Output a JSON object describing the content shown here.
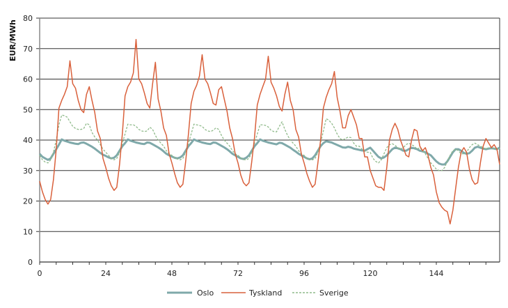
{
  "chart_data": {
    "type": "line",
    "title": "",
    "xlabel": "",
    "ylabel": "EUR/MWh",
    "xlim": [
      0,
      168
    ],
    "ylim": [
      0,
      80
    ],
    "xticks": [
      0,
      24,
      48,
      72,
      96,
      120,
      144
    ],
    "yticks": [
      0,
      10,
      20,
      30,
      40,
      50,
      60,
      70,
      80
    ],
    "grid": "horizontal",
    "legend_position": "bottom",
    "series": [
      {
        "name": "Oslo",
        "color": "#7fa9aa",
        "style": "solid-thick",
        "values": [
          35.5,
          34.5,
          34,
          33.5,
          34,
          35.5,
          37,
          38.5,
          40.2,
          39.8,
          39.5,
          39.2,
          39,
          38.8,
          38.7,
          39.1,
          39.2,
          38.8,
          38.3,
          37.8,
          37.2,
          36.5,
          35.8,
          35.2,
          34.8,
          34.3,
          34,
          34.2,
          35,
          36.5,
          38,
          39,
          40.2,
          39.8,
          39.5,
          39.2,
          39,
          38.8,
          38.7,
          39.2,
          39.1,
          38.6,
          38.1,
          37.6,
          37,
          36.3,
          35.5,
          35,
          34.6,
          34.2,
          34,
          34.3,
          35,
          36.5,
          38,
          39,
          40.2,
          39.8,
          39.5,
          39.2,
          39,
          38.8,
          38.7,
          39.2,
          39.1,
          38.6,
          38.1,
          37.6,
          37,
          36.3,
          35.5,
          35,
          34.5,
          34,
          33.8,
          34.2,
          35,
          36.5,
          38,
          39,
          40.2,
          39.8,
          39.5,
          39.2,
          39,
          38.8,
          38.6,
          39.1,
          39,
          38.5,
          38,
          37.5,
          36.8,
          36.2,
          35.5,
          35,
          34.5,
          34,
          33.7,
          34,
          35,
          36.5,
          38,
          39,
          39.6,
          39.4,
          39.2,
          38.8,
          38.4,
          38,
          37.6,
          37.5,
          37.8,
          37.6,
          37.2,
          37,
          36.8,
          36.6,
          36.5,
          37,
          37.5,
          36.5,
          35.5,
          34.5,
          34,
          34.3,
          35,
          36,
          37,
          37.5,
          37.3,
          37,
          36.5,
          36.5,
          37,
          37.5,
          37.3,
          37,
          36.5,
          36.3,
          36,
          35.5,
          35,
          34,
          33,
          32.3,
          32,
          32,
          33,
          34.5,
          36,
          37,
          37,
          36.5,
          35.8,
          35.5,
          35.7,
          36.5,
          37.5,
          37.8,
          37.5,
          37.2,
          37,
          37.2,
          37.3,
          37.2,
          37,
          37.5
        ]
      },
      {
        "name": "Tyskland",
        "color": "#d9603b",
        "style": "solid",
        "values": [
          26.5,
          23,
          20.5,
          19,
          20.5,
          27,
          37,
          50.5,
          53,
          55,
          57.5,
          66,
          58.5,
          57,
          53,
          50,
          49,
          55,
          57.5,
          53,
          49,
          43,
          40.5,
          34,
          31,
          27.5,
          25,
          23.5,
          24.5,
          32,
          42,
          54.5,
          57.5,
          59,
          62,
          73,
          60,
          58.5,
          55.5,
          52,
          50.5,
          58.5,
          65.5,
          53.5,
          49.5,
          44,
          41.5,
          35.5,
          32.5,
          29,
          26,
          24.5,
          25.5,
          33,
          42,
          52,
          56,
          58,
          61,
          68,
          60,
          58.5,
          55.5,
          52,
          51.5,
          56.5,
          57.5,
          53.5,
          49.5,
          44,
          40.5,
          35.5,
          32.5,
          28.5,
          26,
          25,
          26,
          33,
          41,
          51.5,
          55,
          57.5,
          60,
          67.5,
          59,
          57,
          54.5,
          51,
          49.5,
          55,
          59,
          53,
          50,
          43.5,
          41,
          35.5,
          32.5,
          29,
          26.5,
          24.5,
          25.5,
          32.5,
          40,
          50.5,
          54,
          56.5,
          58.5,
          62.5,
          54,
          49.5,
          44,
          44,
          48,
          50,
          47.5,
          45,
          40.5,
          40.5,
          34.5,
          34.5,
          30,
          27.5,
          25,
          24.5,
          24.5,
          23.5,
          31,
          40,
          43.5,
          45.5,
          43.5,
          40,
          37.5,
          35,
          34.5,
          40,
          43.5,
          43,
          38,
          36.5,
          37.5,
          35,
          31,
          28.5,
          23,
          19.5,
          18,
          17,
          16.5,
          12.5,
          17,
          24,
          31,
          36,
          37.5,
          36,
          30.5,
          27,
          25.5,
          26,
          32.5,
          38,
          40.5,
          39,
          37.5,
          38.5,
          37,
          32
        ]
      },
      {
        "name": "Sverige",
        "color": "#8fba8a",
        "style": "dashed",
        "values": [
          35,
          33.5,
          32.8,
          32.5,
          33.5,
          36,
          40,
          45,
          48.2,
          48,
          47.5,
          46,
          44.5,
          43.8,
          43.5,
          43.5,
          43.8,
          45.5,
          45,
          42.5,
          41,
          40,
          38.5,
          37,
          36,
          35,
          34,
          33.5,
          34,
          36,
          39,
          42,
          45.2,
          45,
          45,
          44.5,
          43.5,
          43,
          42.8,
          43,
          44.2,
          43.5,
          41.5,
          40,
          39,
          38,
          36.5,
          35.5,
          35,
          34.2,
          33.8,
          33.5,
          34,
          36,
          39,
          42,
          45.2,
          45,
          44.8,
          44.5,
          43.5,
          43,
          42.8,
          43.2,
          44,
          43.5,
          41.5,
          40,
          39,
          38,
          36.5,
          35.5,
          35,
          34.2,
          33.6,
          33.5,
          34,
          36,
          39,
          42,
          45,
          45,
          44.8,
          44.3,
          43.2,
          42.8,
          42.7,
          44.5,
          46,
          43.5,
          41.5,
          40,
          39,
          38,
          36.5,
          35.5,
          35,
          34,
          33.5,
          33.5,
          34,
          36,
          39,
          43,
          47,
          46.5,
          45.5,
          44,
          42,
          40.5,
          40,
          40.5,
          41,
          40.8,
          39,
          38,
          38,
          37,
          36.5,
          36,
          36,
          34,
          33,
          32.5,
          33.5,
          35.5,
          37.5,
          38.5,
          38.8,
          38.3,
          37.5,
          37,
          37.5,
          38.5,
          39,
          38.5,
          38,
          37,
          37.5,
          36.5,
          35.5,
          34,
          32.5,
          31.5,
          30.5,
          30,
          30,
          31,
          33,
          35,
          36.5,
          37,
          36.5,
          35.5,
          35.5,
          36,
          37.5,
          38.5,
          39,
          38.5,
          38,
          37.5,
          37,
          37.5,
          37.5,
          37.2,
          37,
          37.5
        ]
      }
    ]
  }
}
